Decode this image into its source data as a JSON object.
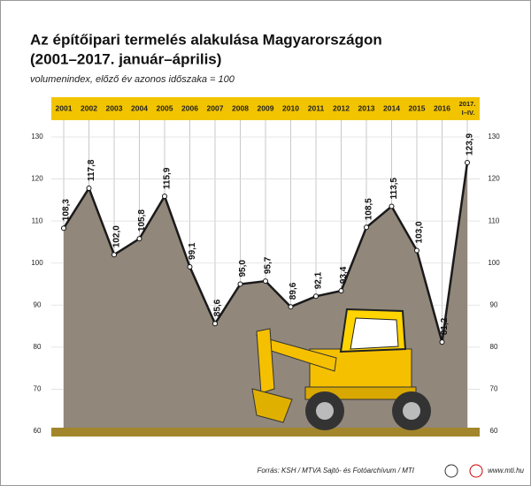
{
  "chart_data": {
    "type": "area",
    "title": "Az építőipari termelés alakulása Magyarországon",
    "title_line2": "(2001–2017. január–április)",
    "subtitle": "volumenindex, előző év azonos időszaka = 100",
    "categories": [
      "2001",
      "2002",
      "2003",
      "2004",
      "2005",
      "2006",
      "2007",
      "2008",
      "2009",
      "2010",
      "2011",
      "2012",
      "2013",
      "2014",
      "2015",
      "2016",
      "2017. I–IV."
    ],
    "values": [
      108.3,
      117.8,
      102.0,
      105.8,
      115.9,
      99.1,
      85.6,
      95.0,
      95.7,
      89.6,
      92.1,
      93.4,
      108.5,
      113.5,
      103.0,
      81.2,
      123.9
    ],
    "value_labels": [
      "108,3",
      "117,8",
      "102,0",
      "105,8",
      "115,9",
      "99,1",
      "85,6",
      "95,0",
      "95,7",
      "89,6",
      "92,1",
      "93,4",
      "108,5",
      "113,5",
      "103,0",
      "81,2",
      "123,9"
    ],
    "color": "#91877b",
    "ylim": [
      60,
      130
    ],
    "yticks": [
      60,
      70,
      80,
      90,
      100,
      110,
      120,
      130
    ],
    "source": "Forrás: KSH / MTVA Sajtó- és Fotóarchívum / MTI",
    "website": "www.mti.hu"
  }
}
